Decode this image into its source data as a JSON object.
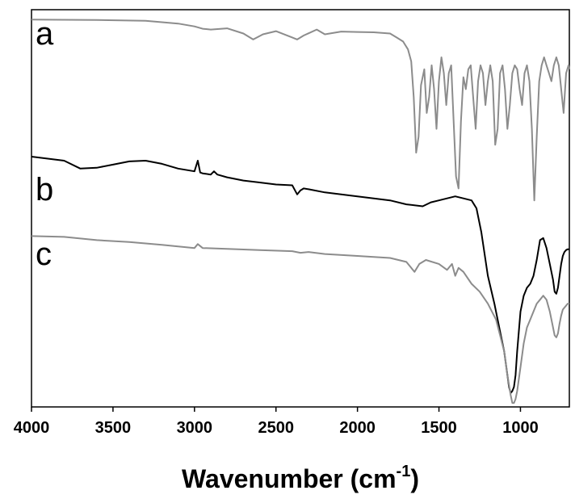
{
  "chart_data": {
    "type": "line",
    "xlabel_main": "Wavenumber (cm",
    "xlabel_sup": "-1",
    "xlabel_close": ")",
    "ylabel": "",
    "xlim": [
      4000,
      700
    ],
    "x_reversed": true,
    "ylim": [
      0,
      100
    ],
    "y_ticks_shown": false,
    "grid": false,
    "x_ticks": [
      4000,
      3500,
      3000,
      2500,
      2000,
      1500,
      1000
    ],
    "x_tick_labels": [
      "4000",
      "3500",
      "3000",
      "2500",
      "2000",
      "1500",
      "1000"
    ],
    "series": [
      {
        "name": "a",
        "color": "#8c8c8c",
        "label_position": "upper-left",
        "x": [
          4000,
          3600,
          3300,
          3100,
          3000,
          2950,
          2900,
          2800,
          2700,
          2640,
          2580,
          2500,
          2400,
          2370,
          2330,
          2250,
          2200,
          2100,
          2000,
          1900,
          1800,
          1760,
          1720,
          1690,
          1670,
          1655,
          1640,
          1625,
          1610,
          1590,
          1575,
          1560,
          1545,
          1530,
          1515,
          1500,
          1485,
          1470,
          1455,
          1440,
          1425,
          1410,
          1395,
          1380,
          1365,
          1350,
          1335,
          1320,
          1305,
          1290,
          1275,
          1260,
          1245,
          1230,
          1215,
          1200,
          1185,
          1170,
          1155,
          1140,
          1125,
          1110,
          1095,
          1080,
          1065,
          1050,
          1035,
          1020,
          1005,
          990,
          975,
          960,
          945,
          930,
          915,
          900,
          885,
          870,
          855,
          840,
          825,
          810,
          795,
          780,
          765,
          750,
          735,
          720,
          705,
          700
        ],
        "y": [
          97.5,
          97.4,
          97.2,
          96.5,
          95.8,
          95.2,
          95.0,
          95.3,
          94.0,
          92.5,
          93.8,
          94.6,
          93.0,
          92.5,
          93.5,
          95.0,
          93.8,
          94.5,
          94.4,
          94.3,
          94.0,
          93.0,
          92.0,
          90.0,
          87.0,
          78.0,
          64.0,
          68.0,
          81.0,
          85.0,
          74.0,
          78.0,
          86.0,
          80.0,
          70.0,
          82.0,
          88.0,
          84.0,
          76.0,
          84.0,
          86.0,
          72.0,
          58.0,
          55.0,
          72.0,
          83.0,
          80.0,
          85.0,
          86.0,
          78.0,
          70.0,
          82.0,
          86.0,
          84.0,
          76.0,
          82.0,
          86.0,
          82.0,
          66.0,
          70.0,
          84.0,
          86.0,
          80.0,
          70.0,
          76.0,
          84.0,
          86.0,
          85.0,
          80.0,
          76.0,
          84.0,
          86.0,
          82.0,
          70.0,
          52.0,
          68.0,
          82.0,
          86.0,
          88.0,
          86.0,
          84.0,
          82.0,
          86.0,
          88.0,
          86.0,
          80.0,
          74.0,
          84.0,
          86.0,
          85.0
        ]
      },
      {
        "name": "b",
        "color": "#000000",
        "label_position": "middle-left",
        "x": [
          4000,
          3800,
          3700,
          3600,
          3500,
          3400,
          3300,
          3200,
          3100,
          3000,
          2980,
          2965,
          2950,
          2900,
          2880,
          2860,
          2800,
          2700,
          2600,
          2500,
          2400,
          2370,
          2350,
          2330,
          2300,
          2200,
          2000,
          1800,
          1700,
          1600,
          1550,
          1500,
          1450,
          1400,
          1350,
          1300,
          1270,
          1240,
          1200,
          1160,
          1120,
          1100,
          1080,
          1070,
          1060,
          1050,
          1040,
          1030,
          1020,
          1000,
          980,
          960,
          940,
          920,
          900,
          880,
          860,
          840,
          820,
          800,
          790,
          780,
          770,
          760,
          750,
          740,
          730,
          720,
          710,
          700
        ],
        "y": [
          63.0,
          62.0,
          60.0,
          60.2,
          61.0,
          61.8,
          62.0,
          61.2,
          60.0,
          59.3,
          62.0,
          59.0,
          58.8,
          58.5,
          59.3,
          58.5,
          57.8,
          57.0,
          56.5,
          56.0,
          55.8,
          53.5,
          54.5,
          55.0,
          54.8,
          54.0,
          53.0,
          52.0,
          51.0,
          50.5,
          51.5,
          52.0,
          52.5,
          53.0,
          52.5,
          52.0,
          50.0,
          44.0,
          33.0,
          26.0,
          18.0,
          14.0,
          8.0,
          5.0,
          3.5,
          4.0,
          5.0,
          8.0,
          14.0,
          24.0,
          28.0,
          30.0,
          31.0,
          33.0,
          37.0,
          42.0,
          42.5,
          40.0,
          36.0,
          32.0,
          29.0,
          28.5,
          30.0,
          33.0,
          36.0,
          38.0,
          39.0,
          39.5,
          39.7,
          39.7
        ]
      },
      {
        "name": "c",
        "color": "#8c8c8c",
        "label_position": "lower-left",
        "x": [
          4000,
          3800,
          3600,
          3400,
          3200,
          3000,
          2980,
          2950,
          2800,
          2600,
          2400,
          2350,
          2300,
          2200,
          2000,
          1800,
          1700,
          1650,
          1620,
          1580,
          1500,
          1450,
          1420,
          1400,
          1380,
          1350,
          1300,
          1250,
          1200,
          1150,
          1100,
          1080,
          1060,
          1050,
          1040,
          1030,
          1020,
          1000,
          980,
          960,
          940,
          920,
          900,
          880,
          860,
          840,
          820,
          800,
          790,
          780,
          770,
          760,
          750,
          740,
          730,
          720,
          710,
          700
        ],
        "y": [
          43.0,
          42.8,
          42.0,
          41.5,
          40.8,
          40.0,
          41.0,
          40.0,
          39.8,
          39.5,
          39.2,
          38.8,
          39.0,
          38.5,
          38.0,
          37.5,
          36.5,
          34.0,
          36.0,
          37.0,
          36.0,
          34.5,
          36.0,
          33.0,
          35.0,
          34.0,
          31.0,
          29.0,
          26.0,
          22.0,
          14.0,
          8.0,
          3.0,
          1.0,
          1.0,
          2.0,
          4.0,
          10.0,
          16.0,
          20.0,
          22.0,
          24.0,
          26.0,
          27.0,
          28.0,
          27.0,
          24.0,
          20.0,
          18.0,
          17.5,
          18.5,
          21.0,
          23.0,
          24.5,
          25.0,
          25.5,
          26.0,
          26.0
        ]
      }
    ]
  }
}
